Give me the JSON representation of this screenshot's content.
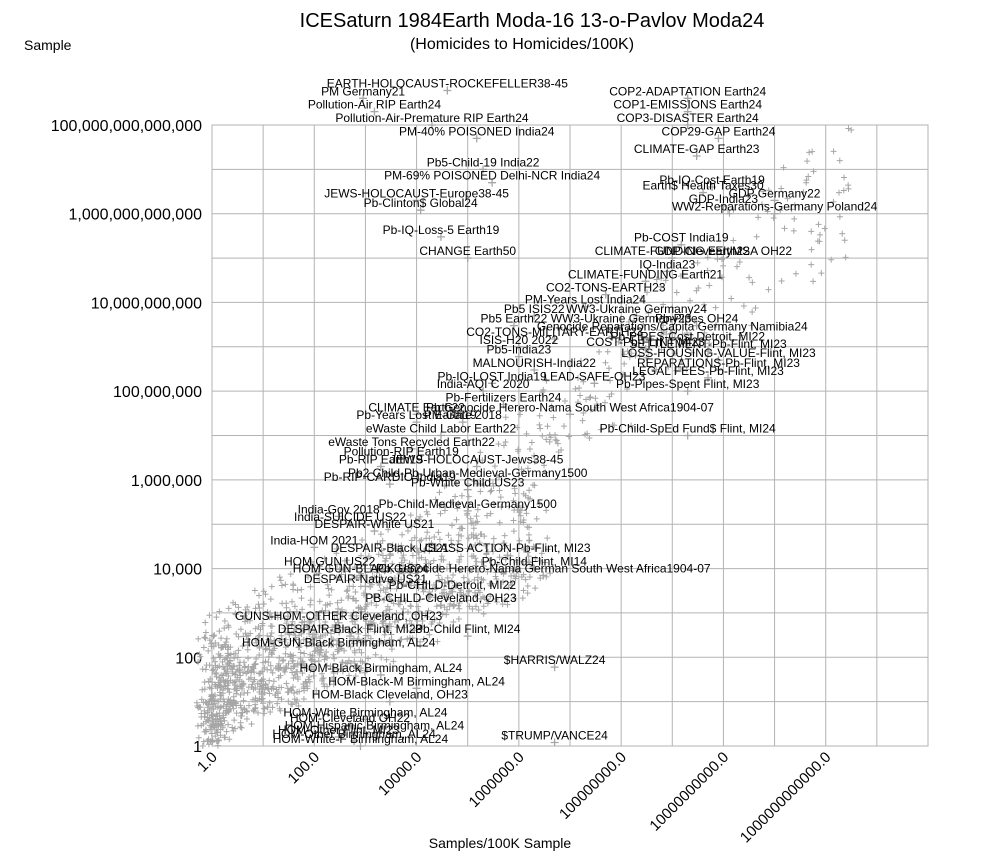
{
  "chart_data": {
    "type": "scatter",
    "title": "ICESaturn 1984Earth Moda-16 13-o-Pavlov Moda24",
    "subtitle": "(Homicides to Homicides/100K)",
    "xlabel": "Samples/100K Sample",
    "ylabel": "Sample",
    "x_scale": "log",
    "y_scale": "log",
    "xlim": [
      1,
      100000000000000
    ],
    "ylim": [
      1,
      100000000000000
    ],
    "x_ticks": [
      "1.0",
      "100.0",
      "10000.0",
      "1000000.0",
      "100000000.0",
      "10000000000.0",
      "1000000000000.0"
    ],
    "y_ticks": [
      "1",
      "100",
      "10,000",
      "1,000,000",
      "100,000,000",
      "10,000,000,000",
      "1,000,000,000,000",
      "100,000,000,000,000"
    ],
    "grid": true,
    "marker": "+",
    "marker_color": "#a6a6a6",
    "label_color": "#000000",
    "point_labels": [
      {
        "text": "PM Germany21",
        "x": 900,
        "y": 400000000000000
      },
      {
        "text": "EARTH-HOLOCAUST-ROCKEFELLER38-45",
        "x": 40000,
        "y": 600000000000000
      },
      {
        "text": "Pollution-Air RIP Earth24",
        "x": 1500,
        "y": 200000000000000
      },
      {
        "text": "COP2-ADAPTATION Earth24",
        "x": 2000000000,
        "y": 400000000000000
      },
      {
        "text": "COP1-EMISSIONS Earth24",
        "x": 2000000000,
        "y": 200000000000000
      },
      {
        "text": "COP3-DISASTER Earth24",
        "x": 2000000000,
        "y": 100000000000000
      },
      {
        "text": "Pollution-Air-Premature RIP Earth24",
        "x": 20000,
        "y": 100000000000000
      },
      {
        "text": "PM-40% POISONED India24",
        "x": 150000,
        "y": 50000000000000
      },
      {
        "text": "COP29-GAP Earth24",
        "x": 8000000000,
        "y": 50000000000000
      },
      {
        "text": "CLIMATE-GAP Earth23",
        "x": 3000000000,
        "y": 20000000000000
      },
      {
        "text": "Pb5-Child-19 India22",
        "x": 200000,
        "y": 10000000000000
      },
      {
        "text": "PM-69% POISONED Delhi-NCR India24",
        "x": 300000,
        "y": 5000000000000
      },
      {
        "text": "Pb-IQ-Cost Earth19",
        "x": 6000000000,
        "y": 4000000000000
      },
      {
        "text": "Earth$ Health Taxes30",
        "x": 4000000000,
        "y": 3000000000000
      },
      {
        "text": "GDP Germany22",
        "x": 100000000000,
        "y": 2000000000000
      },
      {
        "text": "JEWS-HOLOCAUST-Europe38-45",
        "x": 10000,
        "y": 2000000000000
      },
      {
        "text": "GDP-India23",
        "x": 10000000000,
        "y": 1500000000000
      },
      {
        "text": "Pb-Clinton$ Global24",
        "x": 12000,
        "y": 1200000000000
      },
      {
        "text": "WW2-Reparations-Germany Poland24",
        "x": 100000000000,
        "y": 1000000000000
      },
      {
        "text": "Pb-IQ-Loss-5 Earth19",
        "x": 30000,
        "y": 300000000000
      },
      {
        "text": "Pb-COST India19",
        "x": 1500000000,
        "y": 200000000000
      },
      {
        "text": "CHANGE Earth50",
        "x": 100000,
        "y": 100000000000
      },
      {
        "text": "CLIMATE-FUNDING Earth22",
        "x": 1000000000,
        "y": 100000000000
      },
      {
        "text": "GDP-CleveElyMSA OH22",
        "x": 10000000000,
        "y": 100000000000
      },
      {
        "text": "IQ-India23",
        "x": 800000000,
        "y": 50000000000
      },
      {
        "text": "CLIMATE-FUNDING Earth21",
        "x": 300000000,
        "y": 30000000000
      },
      {
        "text": "CO2-TONS-EARTH23",
        "x": 50000000,
        "y": 15000000000
      },
      {
        "text": "PM-Years Lost India24",
        "x": 20000000,
        "y": 8000000000
      },
      {
        "text": "WW3-Ukraine Germany24",
        "x": 200000000,
        "y": 5000000000
      },
      {
        "text": "Pb5 ISIS22",
        "x": 2000000,
        "y": 5000000000
      },
      {
        "text": "WW3-Ukraine Germany23",
        "x": 100000000,
        "y": 3000000000
      },
      {
        "text": "Pb-Pipes OH24",
        "x": 3000000000,
        "y": 3000000000
      },
      {
        "text": "Pb5 Earth22",
        "x": 800000,
        "y": 3000000000
      },
      {
        "text": "Genocide Reparations/Capita Germany Namibia24",
        "x": 1000000000,
        "y": 2000000000
      },
      {
        "text": "CO2-TONS-MILITARY-EARTH23",
        "x": 5000000,
        "y": 1500000000
      },
      {
        "text": "Pb-PIPES-Cost Detroit, MI22",
        "x": 2000000000,
        "y": 1200000000
      },
      {
        "text": "ISIS-H20 2022",
        "x": 1000000,
        "y": 1000000000
      },
      {
        "text": "COST-Pb-FLINT MI23",
        "x": 300000000,
        "y": 900000000
      },
      {
        "text": "SETTLEMENT-Pb-Flint, MI23",
        "x": 5000000000,
        "y": 800000000
      },
      {
        "text": "Pb5-India23",
        "x": 1000000,
        "y": 600000000
      },
      {
        "text": "LOSS-HOUSING-VALUE-Flint, MI23",
        "x": 8000000000,
        "y": 500000000
      },
      {
        "text": "MALNOURISH-India22",
        "x": 2000000,
        "y": 300000000
      },
      {
        "text": "REPARATIONS-Pb-Flint, MI23",
        "x": 8000000000,
        "y": 300000000
      },
      {
        "text": "LEGAL FEES-Pb-Flint, MI23",
        "x": 5000000000,
        "y": 200000000
      },
      {
        "text": "Pb-IQ-LOST India19",
        "x": 300000,
        "y": 150000000
      },
      {
        "text": "LEAD-SAFE-OH23",
        "x": 30000000,
        "y": 150000000
      },
      {
        "text": "Pb-Pipes-Spent Flint, MI23",
        "x": 2000000000,
        "y": 100000000
      },
      {
        "text": "India-AQI C 2020",
        "x": 200000,
        "y": 100000000
      },
      {
        "text": "Pb-Fertilizers Earth24",
        "x": 500000,
        "y": 50000000
      },
      {
        "text": "CLIMATE Earth22",
        "x": 10000,
        "y": 30000000
      },
      {
        "text": "Pb-Years Lost Earth19",
        "x": 10000,
        "y": 20000000
      },
      {
        "text": "PM-Gate 2018",
        "x": 80000,
        "y": 20000000
      },
      {
        "text": "eWaste Child Labor Earth22",
        "x": 30000,
        "y": 10000000
      },
      {
        "text": "Pb-Child-SpEd Fund$ Flint, MI24",
        "x": 2000000000,
        "y": 10000000
      },
      {
        "text": "eWaste Tons Recycled Earth22",
        "x": 8000,
        "y": 5000000
      },
      {
        "text": "Pollution-RIP Earth19",
        "x": 5000,
        "y": 3000000
      },
      {
        "text": "Pb-RIP Earth19",
        "x": 2000,
        "y": 2000000
      },
      {
        "text": "JEWS-HOLOCAUST-Jews38-45",
        "x": 150000,
        "y": 2000000
      },
      {
        "text": "Pb2 Child-Pb-Urban-Medieval-Germany1500",
        "x": 100000,
        "y": 1000000
      },
      {
        "text": "Pb-RIP-CARDIO India19",
        "x": 3000,
        "y": 800000
      },
      {
        "text": "Pb-White Child US23",
        "x": 100000,
        "y": 600000
      },
      {
        "text": "Pb-Child-Medieval-Germany1500",
        "x": 100000,
        "y": 200000
      },
      {
        "text": "India-Gov 2018",
        "x": 300,
        "y": 150000
      },
      {
        "text": "India-SUICIDE US22",
        "x": 500,
        "y": 100000
      },
      {
        "text": "DESPAIR-White US21",
        "x": 1500,
        "y": 70000
      },
      {
        "text": "Pb Genocide Herero-Nama South West Africa1904-07",
        "x": 10000000,
        "y": 30000000
      },
      {
        "text": "India-HOM 2021",
        "x": 100,
        "y": 30000
      },
      {
        "text": "DESPAIR-Black US21",
        "x": 3000,
        "y": 20000
      },
      {
        "text": "CLASS ACTION-Pb-Flint, MI23",
        "x": 600000,
        "y": 20000
      },
      {
        "text": "HOM GUN US22",
        "x": 200,
        "y": 10000
      },
      {
        "text": "Pb-Child Flint, MI14",
        "x": 2000000,
        "y": 10000
      },
      {
        "text": "HOM-GUN-BLACK US24",
        "x": 800,
        "y": 7000
      },
      {
        "text": "Pb Genocide Herero-Nama German South West Africa1904-07",
        "x": 3000000,
        "y": 7000
      },
      {
        "text": "DESPAIR-Native US21",
        "x": 1000,
        "y": 4000
      },
      {
        "text": "Pb-CHILD-Detroit, MI22",
        "x": 50000,
        "y": 3000
      },
      {
        "text": "PB-CHILD-Cleveland, OH23",
        "x": 30000,
        "y": 1500
      },
      {
        "text": "GUNS-HOM-OTHER Cleveland, OH23",
        "x": 300,
        "y": 600
      },
      {
        "text": "DESPAIR-Black Flint, MI23",
        "x": 500,
        "y": 300
      },
      {
        "text": "Pb-Child Flint, MI24",
        "x": 100000,
        "y": 300
      },
      {
        "text": "HOM-GUN-Black Birmingham, AL24",
        "x": 300,
        "y": 150
      },
      {
        "text": "HOM-Black Birmingham, AL24",
        "x": 2000,
        "y": 40
      },
      {
        "text": "HOM-Black-M Birmingham, AL24",
        "x": 10000,
        "y": 20
      },
      {
        "text": "HOM-Black Cleveland, OH23",
        "x": 3000,
        "y": 10
      },
      {
        "text": "HOM-White Birmingham, AL24",
        "x": 1000,
        "y": 4
      },
      {
        "text": "$HARRIS/WALZ24",
        "x": 5000000,
        "y": 60
      },
      {
        "text": "HOM-Cleveland OH22",
        "x": 500,
        "y": 3
      },
      {
        "text": "HOM-Hispanic Birmingham, AL24",
        "x": 1500,
        "y": 2
      },
      {
        "text": "HOM-Other Flint, MI23",
        "x": 300,
        "y": 1.6
      },
      {
        "text": "HOM-Other Birmingham, AL24",
        "x": 600,
        "y": 1.3
      },
      {
        "text": "$TRUMP/VANCE24",
        "x": 5000000,
        "y": 1.2
      },
      {
        "text": "HOM-White-F Birmingham, AL24",
        "x": 800,
        "y": 1
      }
    ]
  }
}
